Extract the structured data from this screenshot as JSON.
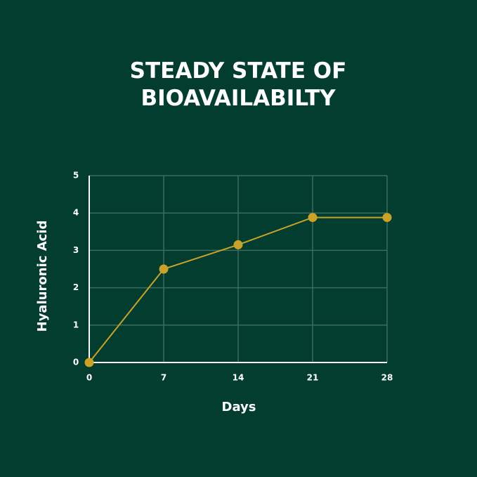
{
  "chart_data": {
    "type": "line",
    "title": "STEADY STATE OF BIOAVAILABILTY",
    "x_label": "Days",
    "y_label": "Hyaluronic Acid",
    "x": [
      0,
      7,
      14,
      21,
      28
    ],
    "series": [
      {
        "name": "Hyaluronic Acid",
        "color": "#c9a227",
        "values": [
          0,
          2.5,
          3.15,
          3.88,
          3.88
        ]
      }
    ],
    "xlim": [
      0,
      28
    ],
    "xticks": [
      0,
      7,
      14,
      21,
      28
    ],
    "ylim": [
      0,
      5
    ],
    "yticks": [
      0,
      1,
      2,
      3,
      4,
      5
    ],
    "grid": true
  }
}
